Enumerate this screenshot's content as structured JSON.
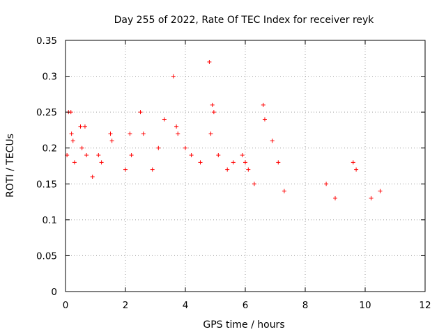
{
  "chart_data": {
    "type": "scatter",
    "title": "Day 255 of 2022, Rate Of TEC Index for receiver reyk",
    "xlabel": "GPS time / hours",
    "ylabel": "ROTI / TECUs",
    "xlim": [
      0,
      12
    ],
    "ylim": [
      0,
      0.35
    ],
    "xticks": [
      0,
      2,
      4,
      6,
      8,
      10,
      12
    ],
    "xtick_labels": [
      "0",
      "2",
      "4",
      "6",
      "8",
      "10",
      "12"
    ],
    "yticks": [
      0,
      0.05,
      0.1,
      0.15,
      0.2,
      0.25,
      0.3,
      0.35
    ],
    "ytick_labels": [
      "0",
      "0.05",
      "0.1",
      "0.15",
      "0.2",
      "0.25",
      "0.3",
      "0.35"
    ],
    "grid": true,
    "marker": "+",
    "color": "#ff0000",
    "series": [
      {
        "name": "ROTI",
        "points": [
          [
            0.05,
            0.19
          ],
          [
            0.1,
            0.25
          ],
          [
            0.18,
            0.25
          ],
          [
            0.2,
            0.22
          ],
          [
            0.25,
            0.21
          ],
          [
            0.3,
            0.18
          ],
          [
            0.5,
            0.23
          ],
          [
            0.55,
            0.2
          ],
          [
            0.65,
            0.23
          ],
          [
            0.7,
            0.19
          ],
          [
            0.9,
            0.16
          ],
          [
            1.1,
            0.19
          ],
          [
            1.2,
            0.18
          ],
          [
            1.5,
            0.22
          ],
          [
            1.55,
            0.21
          ],
          [
            2.0,
            0.17
          ],
          [
            2.15,
            0.22
          ],
          [
            2.2,
            0.19
          ],
          [
            2.5,
            0.25
          ],
          [
            2.6,
            0.22
          ],
          [
            2.9,
            0.17
          ],
          [
            3.1,
            0.2
          ],
          [
            3.3,
            0.24
          ],
          [
            3.6,
            0.3
          ],
          [
            3.7,
            0.23
          ],
          [
            3.75,
            0.22
          ],
          [
            4.0,
            0.2
          ],
          [
            4.2,
            0.19
          ],
          [
            4.5,
            0.18
          ],
          [
            4.8,
            0.32
          ],
          [
            4.85,
            0.22
          ],
          [
            4.9,
            0.26
          ],
          [
            4.95,
            0.25
          ],
          [
            5.1,
            0.19
          ],
          [
            5.4,
            0.17
          ],
          [
            5.6,
            0.18
          ],
          [
            5.9,
            0.19
          ],
          [
            6.0,
            0.18
          ],
          [
            6.1,
            0.17
          ],
          [
            6.3,
            0.15
          ],
          [
            6.6,
            0.26
          ],
          [
            6.65,
            0.24
          ],
          [
            6.9,
            0.21
          ],
          [
            7.1,
            0.18
          ],
          [
            7.3,
            0.14
          ],
          [
            8.7,
            0.15
          ],
          [
            9.0,
            0.13
          ],
          [
            9.6,
            0.18
          ],
          [
            9.7,
            0.17
          ],
          [
            10.2,
            0.13
          ],
          [
            10.5,
            0.14
          ]
        ]
      }
    ]
  }
}
